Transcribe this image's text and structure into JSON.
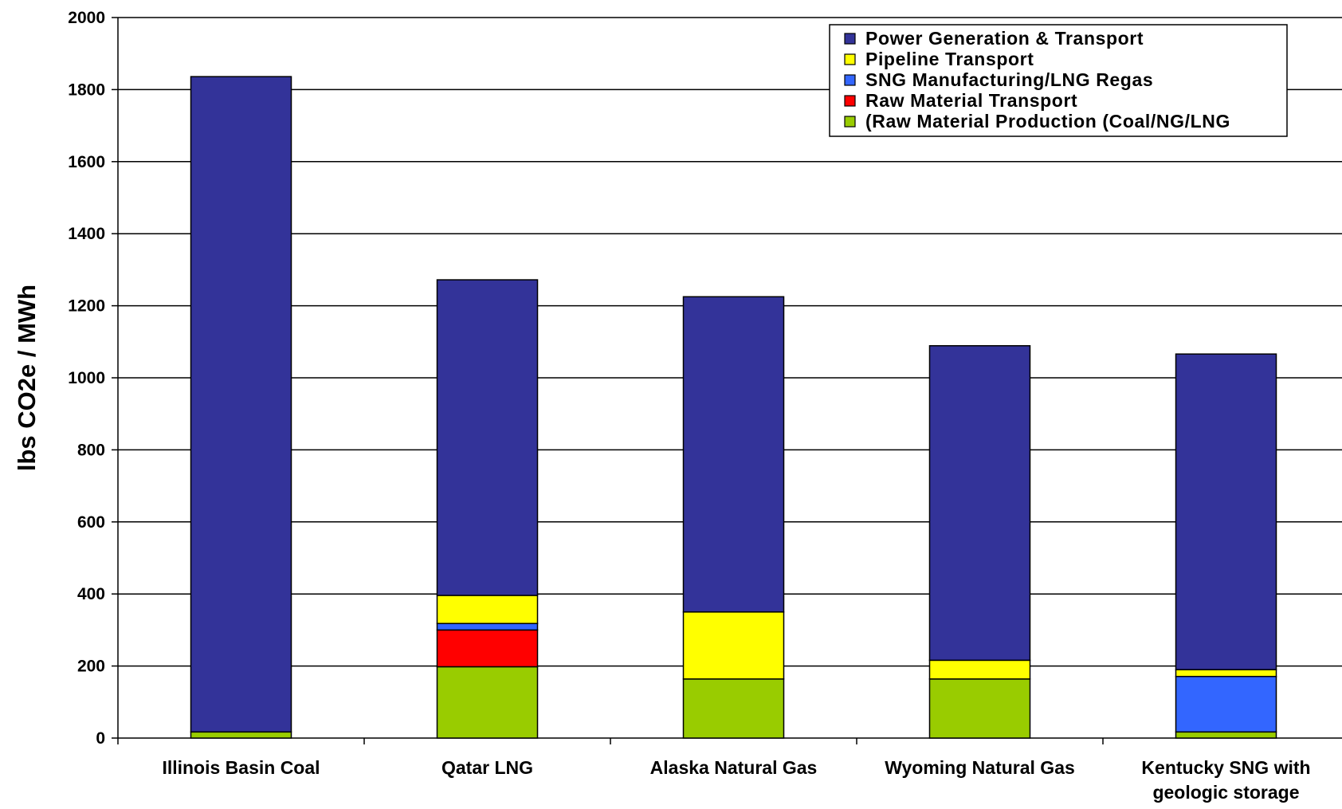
{
  "chart_data": {
    "type": "bar",
    "stacked": true,
    "title": "",
    "xlabel": "",
    "ylabel": "lbs CO2e / MWh",
    "ylim": [
      0,
      2000
    ],
    "yticks": [
      0,
      200,
      400,
      600,
      800,
      1000,
      1200,
      1400,
      1600,
      1800,
      2000
    ],
    "grid": true,
    "legend_position": "top-right",
    "categories": [
      [
        "Illinois Basin Coal"
      ],
      [
        "Qatar LNG"
      ],
      [
        "Alaska Natural Gas"
      ],
      [
        "Wyoming Natural Gas"
      ],
      [
        "Kentucky SNG with",
        "geologic storage"
      ]
    ],
    "series": [
      {
        "name": "(Raw Material Production (Coal/NG/LNG",
        "color": "#99CC00",
        "values": [
          17,
          198,
          164,
          164,
          17
        ]
      },
      {
        "name": "Raw Material Transport",
        "color": "#FF0000",
        "values": [
          0,
          102,
          0,
          0,
          0
        ]
      },
      {
        "name": "SNG Manufacturing/LNG Regas",
        "color": "#3366FF",
        "values": [
          0,
          18,
          0,
          0,
          154
        ]
      },
      {
        "name": "Pipeline Transport",
        "color": "#FFFF00",
        "values": [
          0,
          78,
          186,
          52,
          19
        ]
      },
      {
        "name": "Power Generation & Transport",
        "color": "#333399",
        "values": [
          1819,
          876,
          875,
          873,
          876
        ]
      }
    ],
    "legend_order": [
      "Power Generation & Transport",
      "Pipeline Transport",
      "SNG Manufacturing/LNG Regas",
      "Raw Material Transport",
      "(Raw Material Production (Coal/NG/LNG"
    ]
  }
}
